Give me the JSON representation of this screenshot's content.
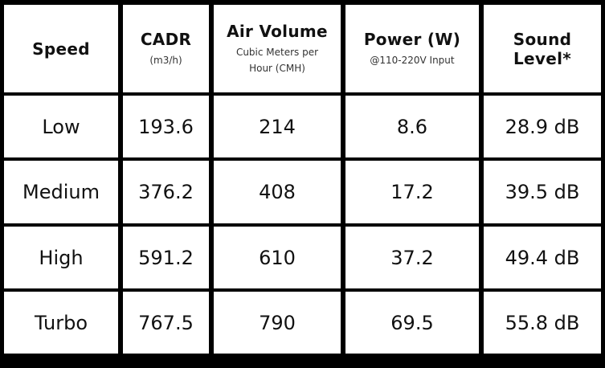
{
  "table": {
    "headers": [
      {
        "title": "Speed",
        "subtitle": ""
      },
      {
        "title": "CADR",
        "subtitle": "(m3/h)"
      },
      {
        "title": "Air Volume",
        "subtitle": "Cubic Meters per Hour (CMH)"
      },
      {
        "title": "Power (W)",
        "subtitle": "@110-220V Input"
      },
      {
        "title": "Sound Level*",
        "subtitle": ""
      }
    ],
    "rows": [
      [
        "Low",
        "193.6",
        "214",
        "8.6",
        "28.9 dB"
      ],
      [
        "Medium",
        "376.2",
        "408",
        "17.2",
        "39.5 dB"
      ],
      [
        "High",
        "591.2",
        "610",
        "37.2",
        "49.4 dB"
      ],
      [
        "Turbo",
        "767.5",
        "790",
        "69.5",
        "55.8 dB"
      ]
    ]
  },
  "colors": {
    "grid_line": "#000000",
    "cell_background": "#ffffff",
    "text": "#111111"
  }
}
